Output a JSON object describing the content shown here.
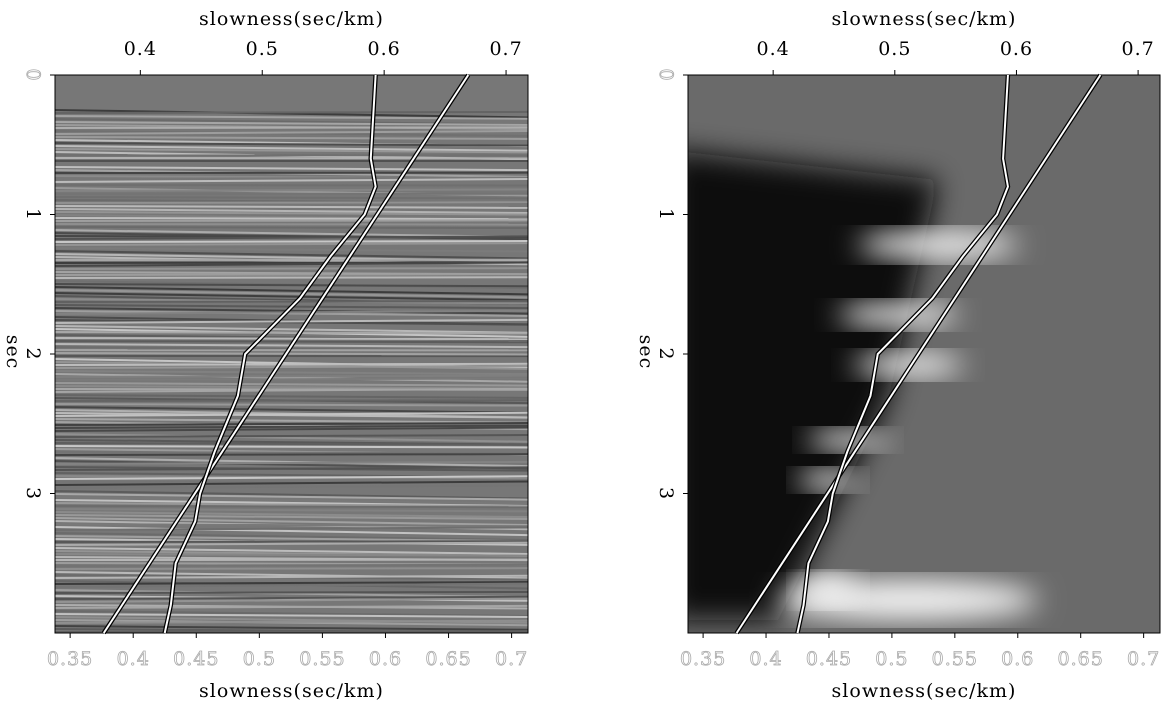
{
  "chart_data": [
    {
      "type": "line",
      "x_label_top": "slowness(sec/km)",
      "x_label": "slowness(sec/km)",
      "y_label": "sec",
      "xlim": [
        0.33,
        0.718
      ],
      "xticks": [
        0.4,
        0.5,
        0.6,
        0.7
      ],
      "x2lim": [
        0.338,
        0.713
      ],
      "x2ticks": [
        0.35,
        0.4,
        0.45,
        0.5,
        0.55,
        0.6,
        0.65,
        0.7
      ],
      "ylim": [
        0,
        4
      ],
      "yticks": [
        0,
        1,
        2,
        3
      ],
      "series": [
        {
          "color": "#ffffff",
          "x": [
            0.669,
            0.37
          ],
          "y": [
            0,
            4
          ]
        },
        {
          "color": "#ffffff",
          "x": [
            0.593,
            0.589,
            0.593,
            0.584,
            0.556,
            0.531,
            0.486,
            0.48,
            0.461,
            0.449,
            0.445,
            0.429,
            0.425,
            0.42
          ],
          "y": [
            0,
            0.6,
            0.8,
            1.0,
            1.3,
            1.6,
            2.0,
            2.3,
            2.7,
            3.0,
            3.2,
            3.5,
            3.8,
            4.0
          ]
        }
      ]
    },
    {
      "type": "line",
      "x_label_top": "slowness(sec/km)",
      "x_label": "slowness(sec/km)",
      "y_label": "sec",
      "xlim": [
        0.33,
        0.718
      ],
      "xticks": [
        0.4,
        0.5,
        0.6,
        0.7
      ],
      "x2lim": [
        0.338,
        0.713
      ],
      "x2ticks": [
        0.35,
        0.4,
        0.45,
        0.5,
        0.55,
        0.6,
        0.65,
        0.7
      ],
      "ylim": [
        0,
        4
      ],
      "yticks": [
        0,
        1,
        2,
        3
      ],
      "series": [
        {
          "color": "#ffffff",
          "x": [
            0.669,
            0.37
          ],
          "y": [
            0,
            4
          ]
        },
        {
          "color": "#ffffff",
          "x": [
            0.593,
            0.589,
            0.593,
            0.584,
            0.556,
            0.531,
            0.486,
            0.48,
            0.461,
            0.449,
            0.445,
            0.429,
            0.425,
            0.42
          ],
          "y": [
            0,
            0.6,
            0.8,
            1.0,
            1.3,
            1.6,
            2.0,
            2.3,
            2.7,
            3.0,
            3.2,
            3.5,
            3.8,
            4.0
          ]
        }
      ]
    }
  ]
}
